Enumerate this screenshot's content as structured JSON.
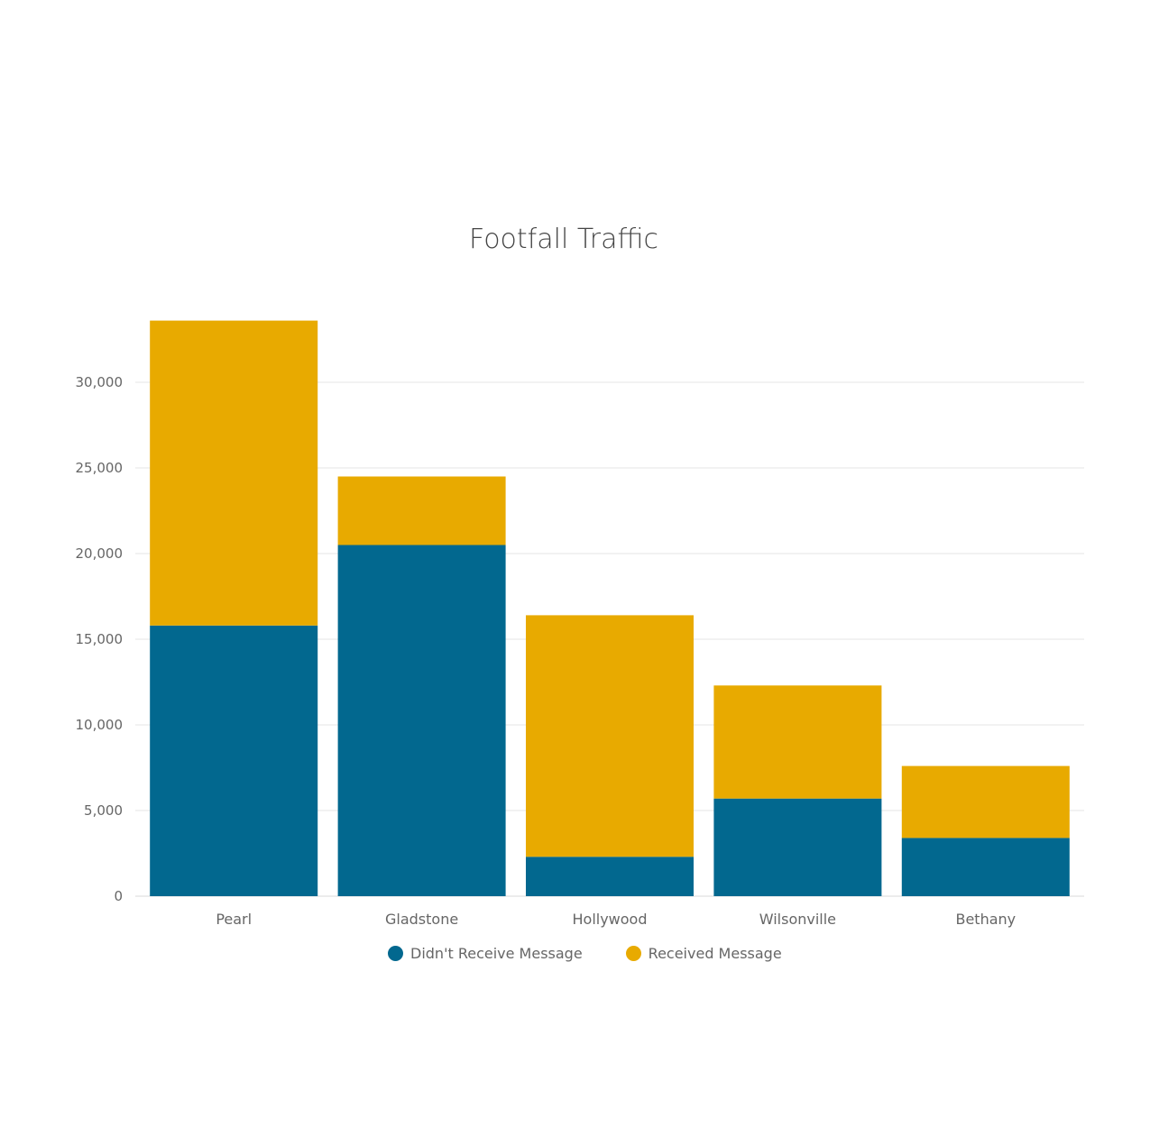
{
  "chart_data": {
    "type": "bar",
    "stacked": true,
    "title": "Footfall Traffic",
    "xlabel": "",
    "ylabel": "",
    "ylim": [
      0,
      35000
    ],
    "yticks": [
      0,
      5000,
      10000,
      15000,
      20000,
      25000,
      30000
    ],
    "ytick_labels": [
      "0",
      "5,000",
      "10,000",
      "15,000",
      "20,000",
      "25,000",
      "30,000"
    ],
    "grid": true,
    "legend_position": "bottom-center",
    "categories": [
      "Pearl",
      "Gladstone",
      "Hollywood",
      "Wilsonville",
      "Bethany"
    ],
    "series": [
      {
        "name": "Didn't Receive Message",
        "color": "#02688f",
        "values": [
          15800,
          20500,
          2300,
          5700,
          3400
        ]
      },
      {
        "name": "Received Message",
        "color": "#e8aa00",
        "values": [
          17800,
          4000,
          14100,
          6600,
          4200
        ]
      }
    ]
  }
}
